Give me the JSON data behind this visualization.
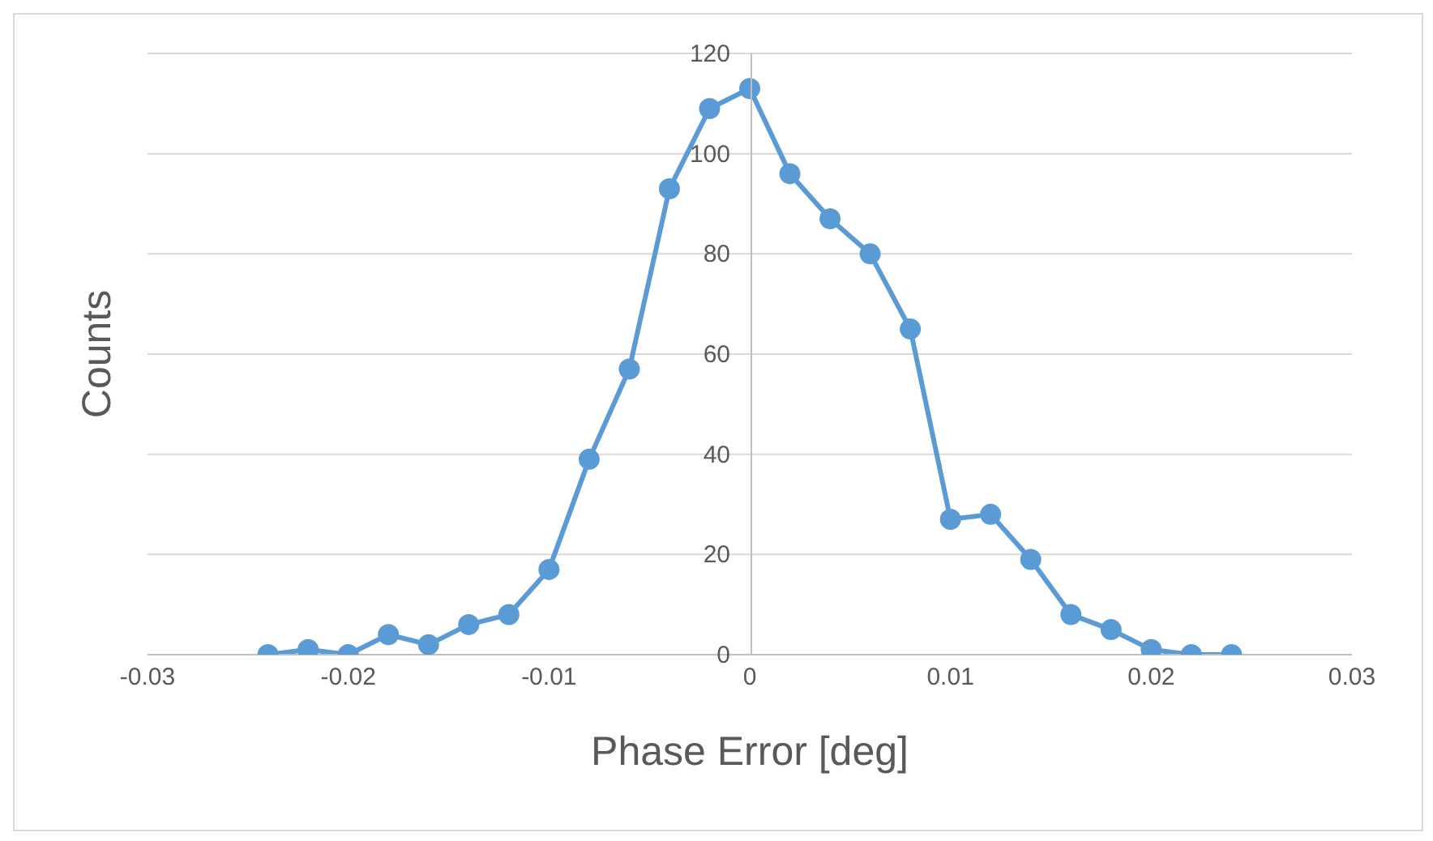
{
  "chart_data": {
    "type": "line",
    "xlabel": "Phase Error [deg]",
    "ylabel": "Counts",
    "x": [
      -0.024,
      -0.022,
      -0.02,
      -0.018,
      -0.016,
      -0.014,
      -0.012,
      -0.01,
      -0.008,
      -0.006,
      -0.004,
      -0.002,
      0,
      0.002,
      0.004,
      0.006,
      0.008,
      0.01,
      0.012,
      0.014,
      0.016,
      0.018,
      0.02,
      0.022,
      0.024
    ],
    "values": [
      0,
      1,
      0,
      4,
      2,
      6,
      8,
      17,
      39,
      57,
      93,
      109,
      113,
      96,
      87,
      80,
      65,
      27,
      28,
      19,
      8,
      5,
      1,
      0,
      0
    ],
    "color": "#5b9bd5",
    "marker": "circle",
    "line_style": "solid",
    "xlim": [
      -0.03,
      0.03
    ],
    "xticks": [
      -0.03,
      -0.02,
      -0.01,
      0,
      0.01,
      0.02,
      0.03
    ],
    "ylim": [
      0,
      120
    ],
    "yticks": [
      0,
      20,
      40,
      60,
      80,
      100,
      120
    ],
    "grid": "y",
    "legend": false
  }
}
